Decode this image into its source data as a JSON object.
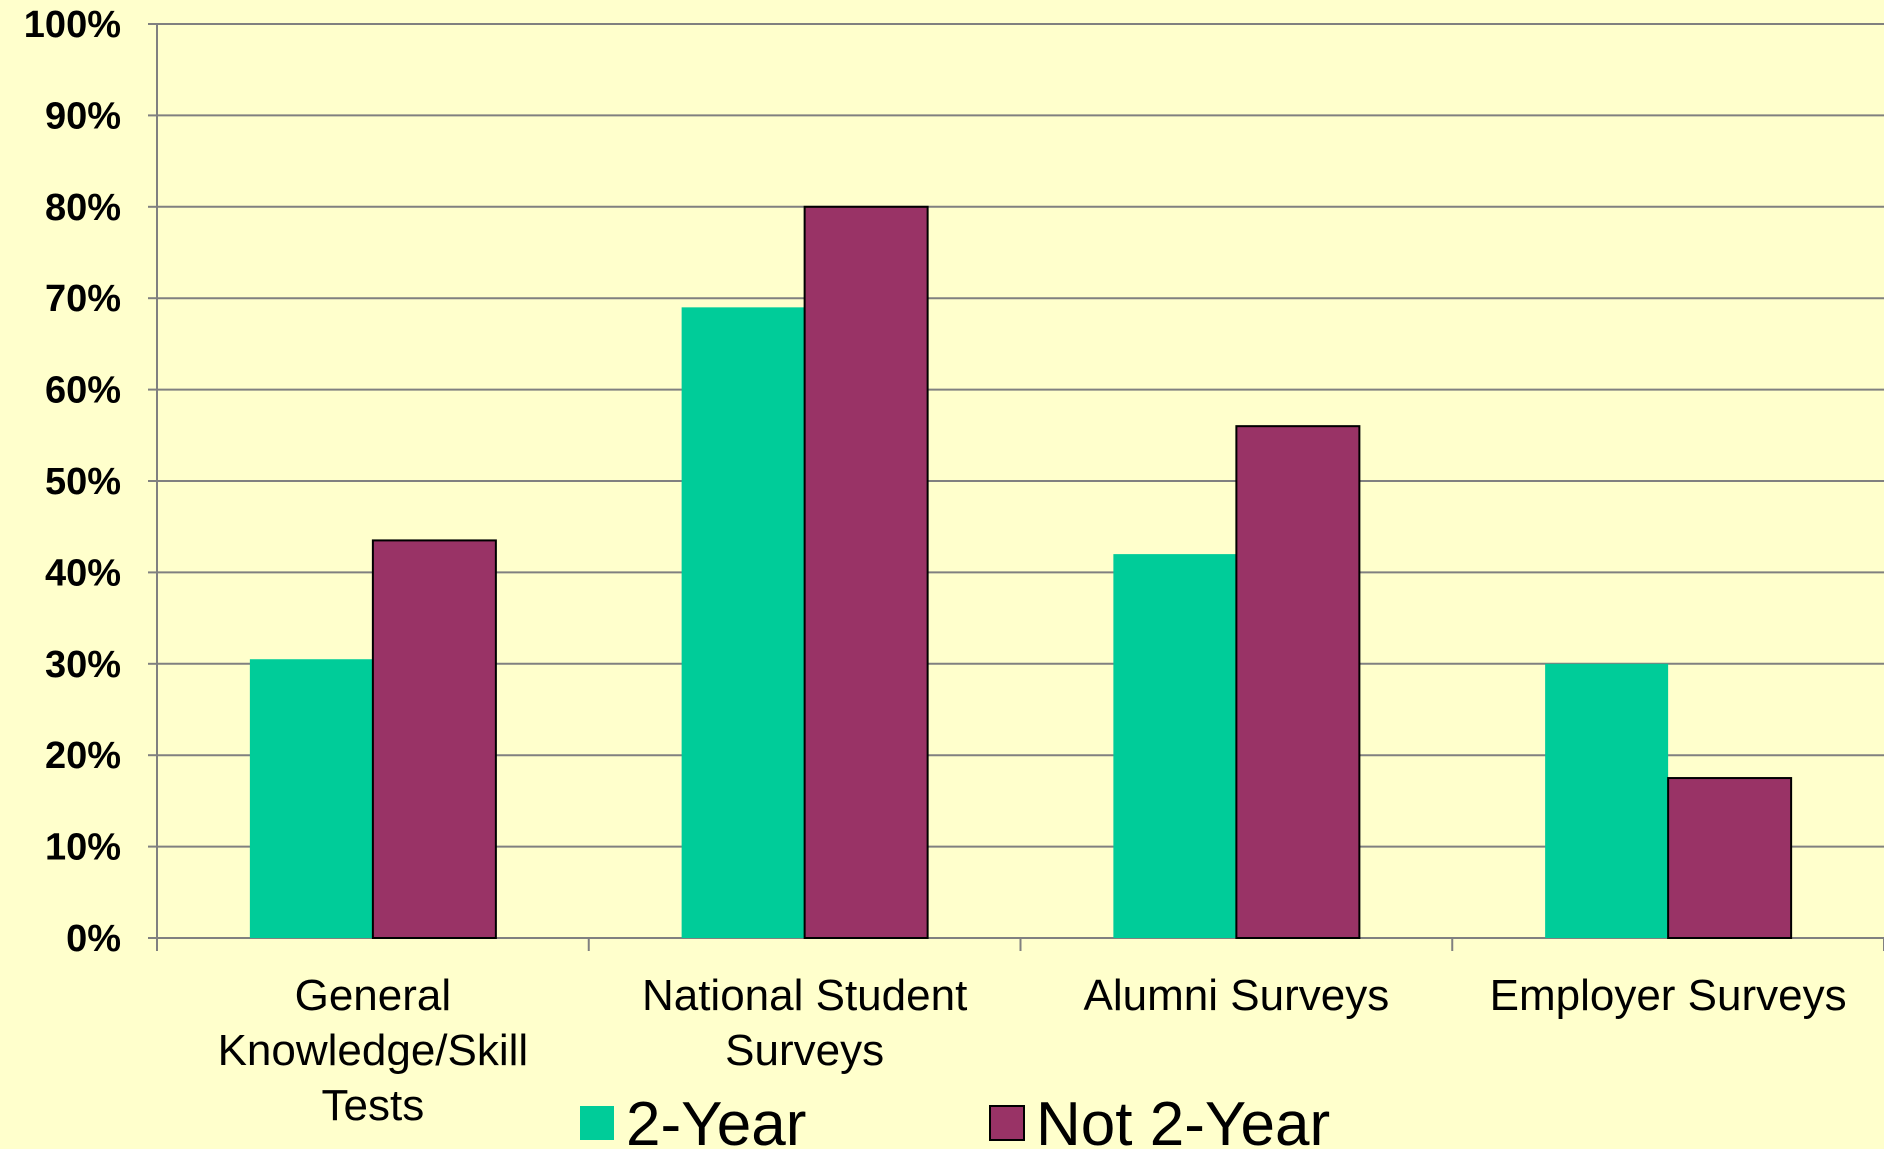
{
  "chart_data": {
    "type": "bar",
    "title": "",
    "xlabel": "",
    "ylabel": "",
    "ylim": [
      0,
      100
    ],
    "y_tick_step": 10,
    "y_tick_format": "percent",
    "y_tick_labels": [
      "0%",
      "10%",
      "20%",
      "30%",
      "40%",
      "50%",
      "60%",
      "70%",
      "80%",
      "90%",
      "100%"
    ],
    "grid": true,
    "legend_position": "bottom",
    "categories": [
      [
        "General",
        "Knowledge/Skill",
        "Tests"
      ],
      [
        "National Student",
        "Surveys"
      ],
      [
        "Alumni Surveys"
      ],
      [
        "Employer Surveys"
      ]
    ],
    "series": [
      {
        "name": "2-Year",
        "color": "#00CC99",
        "values": [
          30.5,
          69,
          42,
          30
        ]
      },
      {
        "name": "Not 2-Year",
        "color": "#993366",
        "values": [
          43.5,
          80,
          56,
          17.5
        ]
      }
    ],
    "background_color": "#FFFFCC",
    "grid_color": "#808080"
  }
}
